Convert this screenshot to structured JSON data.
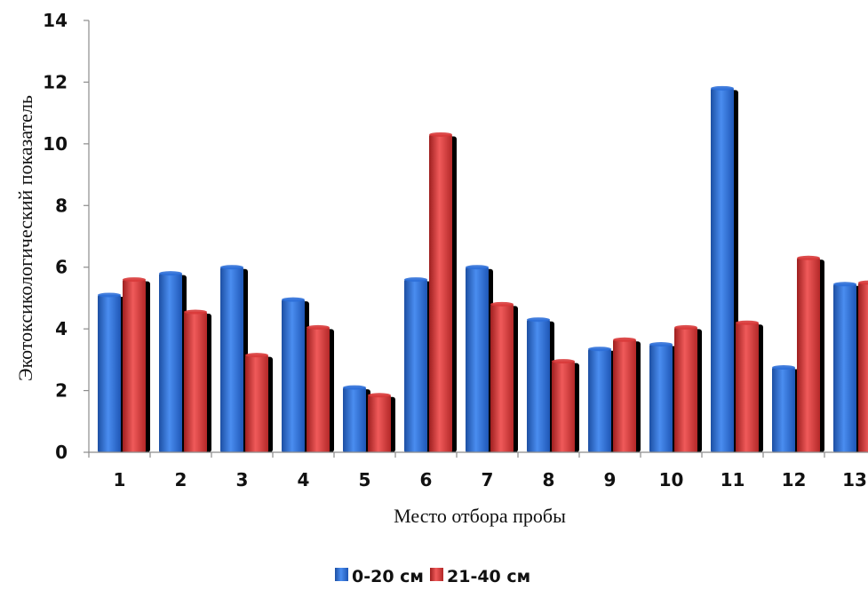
{
  "chart_data": {
    "type": "bar",
    "xlabel": "Место отбора пробы",
    "ylabel": "Экотоксикологический показатель",
    "ylim": [
      0,
      14
    ],
    "yticks": [
      0,
      2,
      4,
      6,
      8,
      10,
      12,
      14
    ],
    "categories": [
      "1",
      "2",
      "3",
      "4",
      "5",
      "6",
      "7",
      "8",
      "9",
      "10",
      "11",
      "12",
      "13"
    ],
    "series": [
      {
        "name": "0-20 см",
        "color": "#2E6FD8",
        "values": [
          5.1,
          5.8,
          6.0,
          4.95,
          2.1,
          5.6,
          6.0,
          4.3,
          3.35,
          3.5,
          11.8,
          2.75,
          5.45
        ]
      },
      {
        "name": "21-40 см",
        "color": "#D83A3A",
        "values": [
          5.6,
          4.55,
          3.15,
          4.05,
          1.85,
          10.3,
          4.8,
          2.95,
          3.65,
          4.05,
          4.2,
          6.3,
          5.5
        ]
      }
    ],
    "grid": false,
    "legend_position": "bottom-center"
  }
}
